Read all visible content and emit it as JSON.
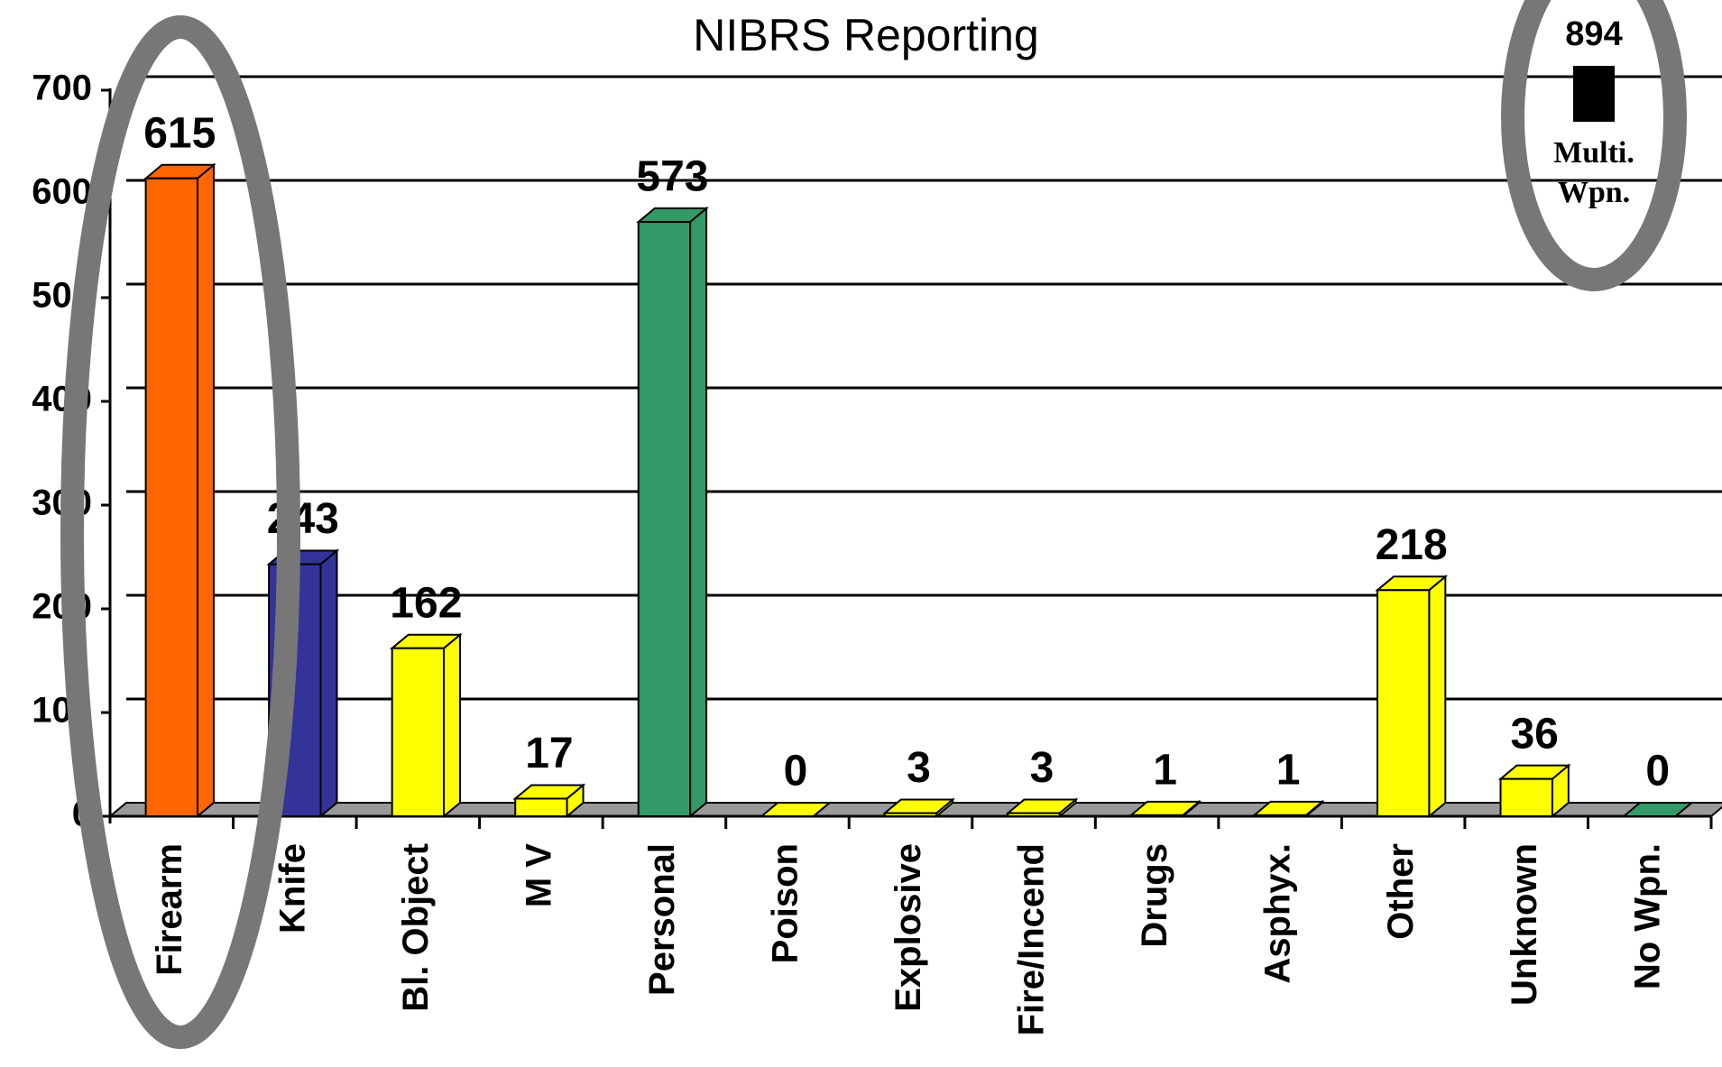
{
  "chart_data": {
    "type": "bar",
    "subtitle": "NIBRS Reporting",
    "categories": [
      "Firearm",
      "Knife",
      "Bl. Object",
      "M V",
      "Personal",
      "Poison",
      "Explosive",
      "Fire/Incend",
      "Drugs",
      "Asphyx.",
      "Other",
      "Unknown",
      "No Wpn."
    ],
    "values": [
      615,
      243,
      162,
      17,
      573,
      0,
      3,
      3,
      1,
      1,
      218,
      36,
      0
    ],
    "colors": [
      "#ff6600",
      "#333399",
      "#ffff00",
      "#ffff00",
      "#339966",
      "#ffff00",
      "#ffff00",
      "#ffff00",
      "#ffff00",
      "#ffff00",
      "#ffff00",
      "#ffff00",
      "#339966"
    ],
    "ylim": [
      0,
      700
    ],
    "yticks": [
      0,
      100,
      200,
      300,
      400,
      500,
      600,
      700
    ],
    "grid": true,
    "inset": {
      "value": 894,
      "label_lines": [
        "Multi.",
        "Wpn."
      ],
      "color": "#000000"
    }
  }
}
